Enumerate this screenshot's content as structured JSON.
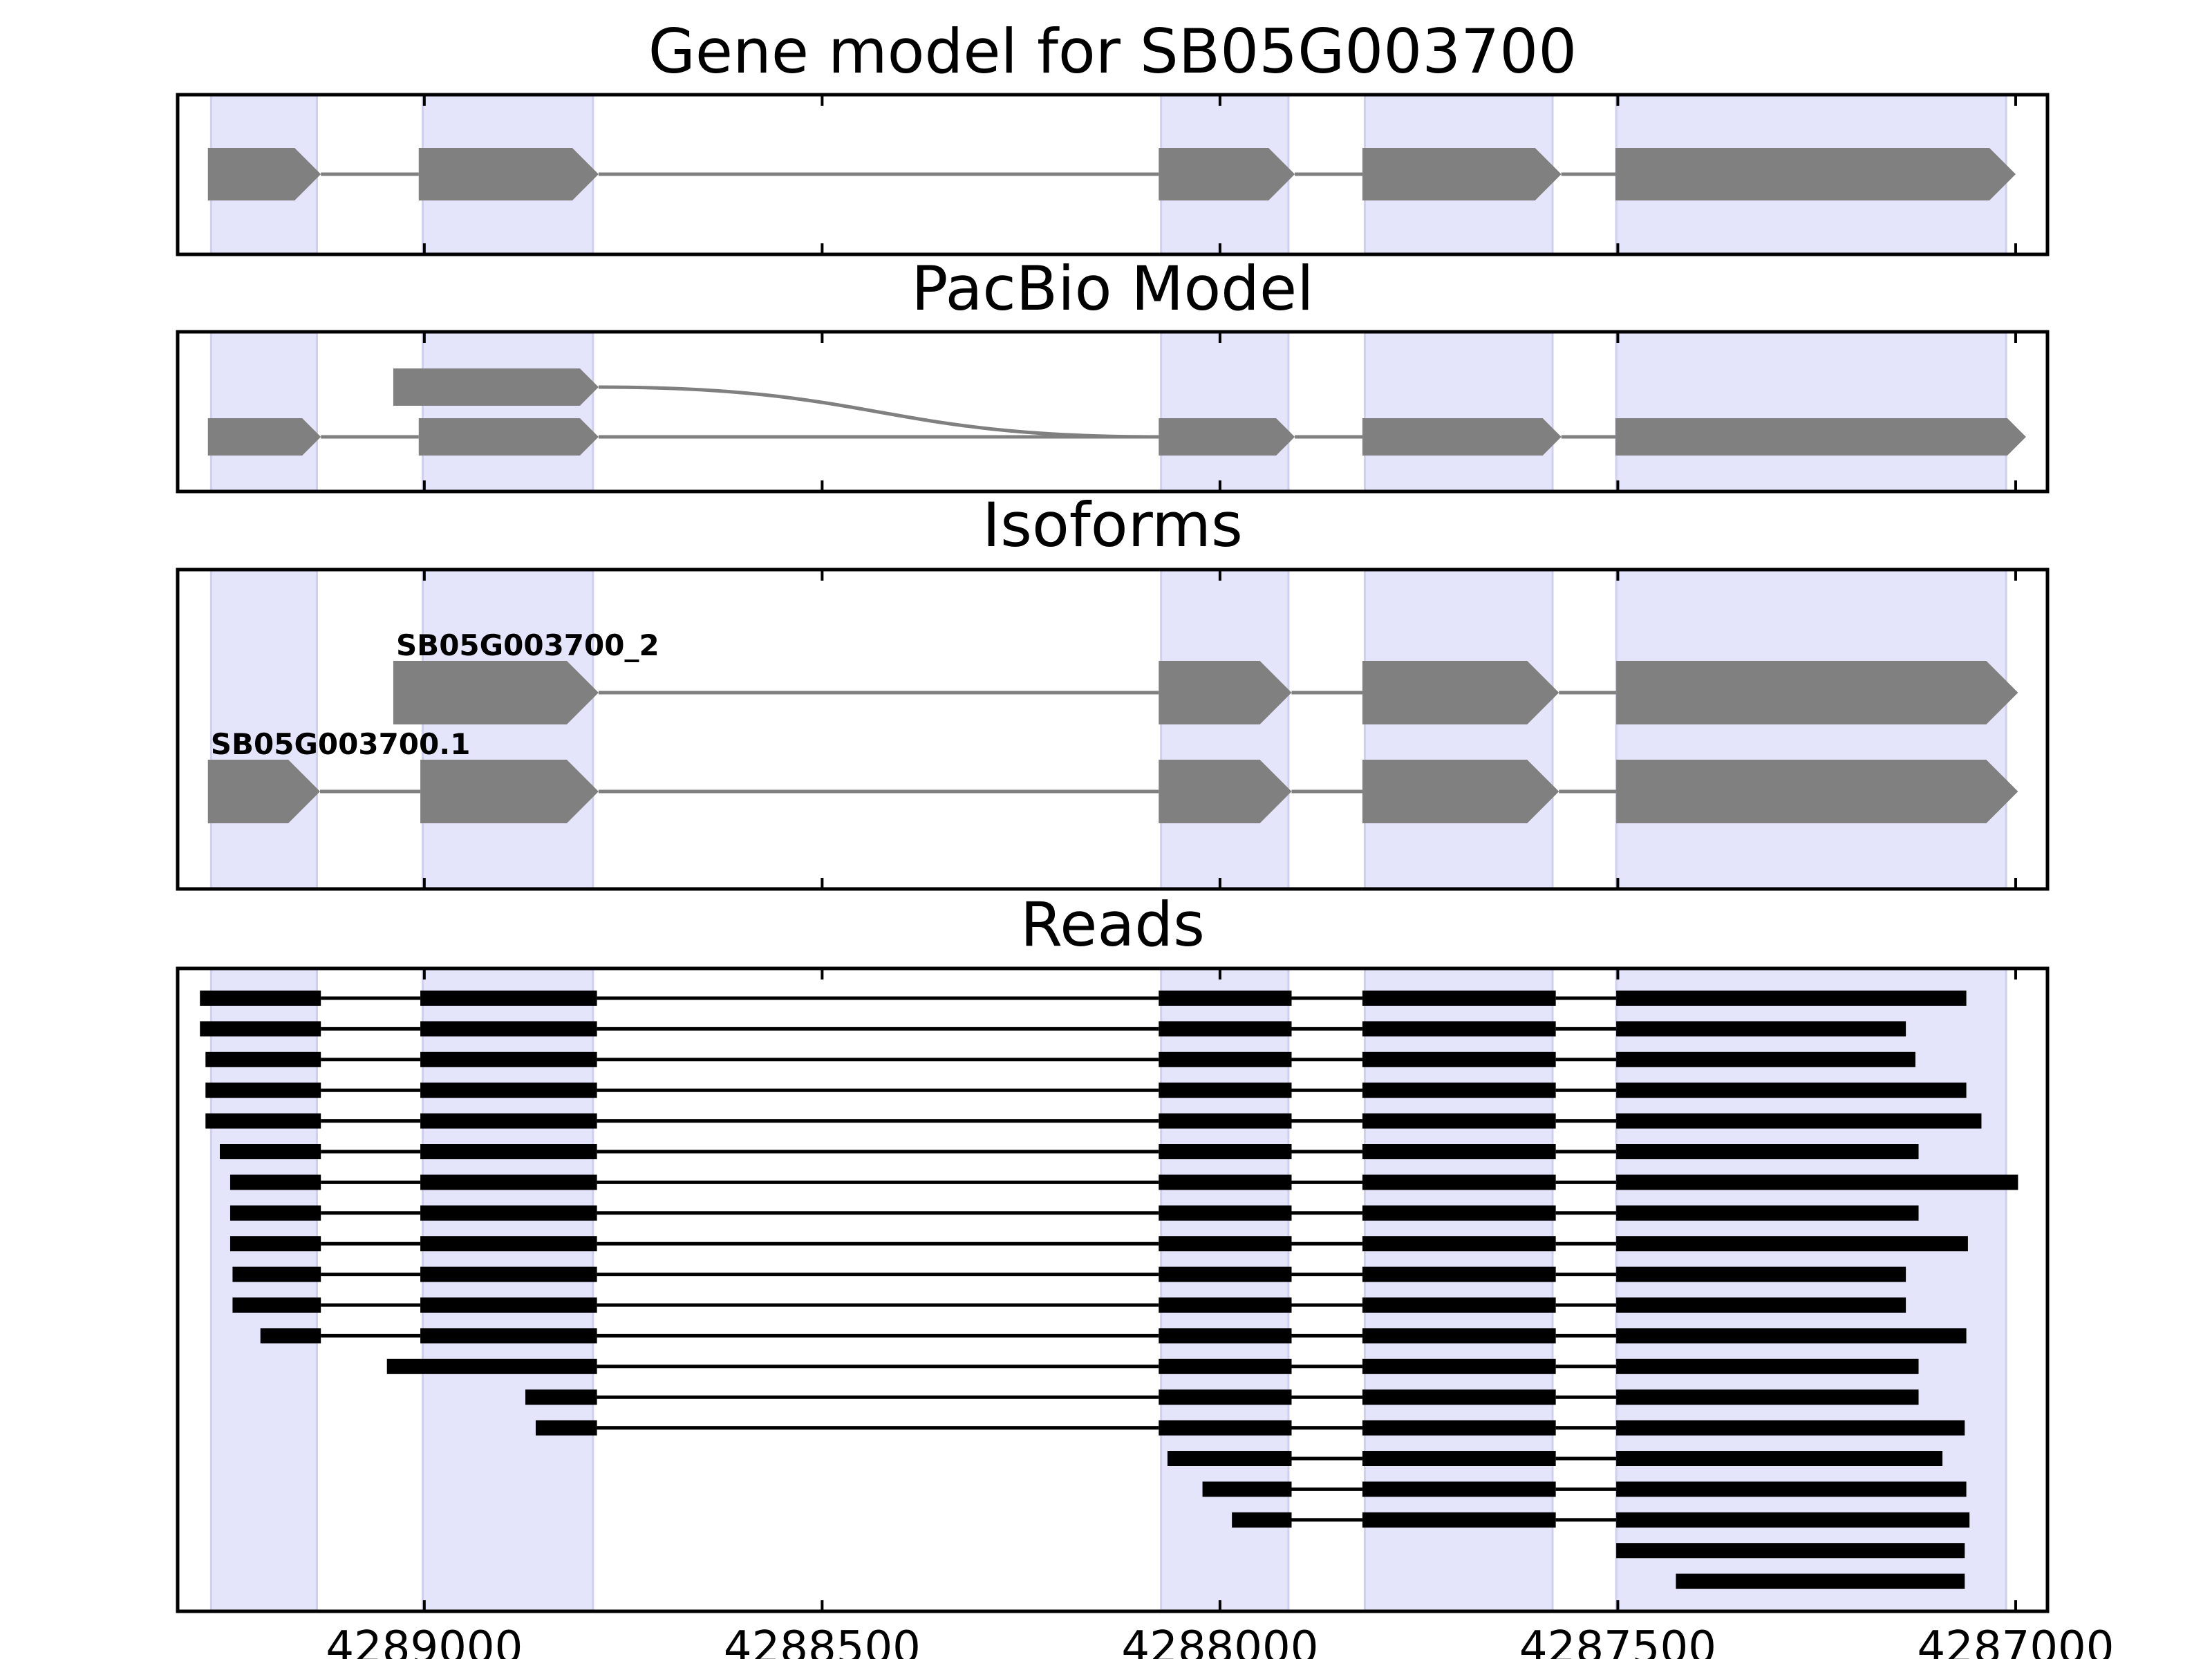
{
  "chart_data": {
    "type": "gene-structure",
    "x_axis": {
      "range": [
        4289310,
        4286960
      ],
      "inverted": true,
      "ticks": [
        4289000,
        4288500,
        4288000,
        4287500,
        4287000
      ],
      "tick_labels": [
        "4289000",
        "4288500",
        "4288000",
        "4287500",
        "4287000"
      ]
    },
    "highlight_regions": [
      [
        4289268,
        4289135
      ],
      [
        4289002,
        4288788
      ],
      [
        4288074,
        4287914
      ],
      [
        4287818,
        4287582
      ],
      [
        4287502,
        4287012
      ]
    ],
    "colors": {
      "highlight": "#e4e4fb",
      "highlight_edge": "#cfcfee",
      "feature": "#808080",
      "read": "#000000",
      "frame": "#000000"
    },
    "panels": [
      {
        "title": "Gene model for SB05G003700",
        "transcripts": [
          {
            "label": "",
            "row": 0,
            "exons": [
              [
                4289272,
                4289130
              ],
              [
                4289007,
                4288781
              ],
              [
                4288077,
                4287906
              ],
              [
                4287821,
                4287571
              ],
              [
                4287503,
                4287000
              ]
            ]
          }
        ]
      },
      {
        "title": "PacBio Model",
        "transcripts": [
          {
            "label": "",
            "row": 1,
            "exons": [
              [
                4289039,
                4288781
              ]
            ],
            "curve_to": 4288077
          },
          {
            "label": "",
            "row": 0,
            "exons": [
              [
                4289272,
                4289130
              ],
              [
                4289007,
                4288781
              ],
              [
                4288077,
                4287906
              ],
              [
                4287821,
                4287571
              ],
              [
                4287503,
                4286987
              ]
            ]
          }
        ]
      },
      {
        "title": "Isoforms",
        "transcripts": [
          {
            "label": "SB05G003700_2",
            "row": 1,
            "exons": [
              [
                4289039,
                4288781
              ],
              [
                4288077,
                4287910
              ],
              [
                4287821,
                4287574
              ],
              [
                4287502,
                4286997
              ]
            ]
          },
          {
            "label": "SB05G003700.1",
            "row": 0,
            "exons": [
              [
                4289272,
                4289131
              ],
              [
                4289005,
                4288781
              ],
              [
                4288077,
                4287910
              ],
              [
                4287821,
                4287574
              ],
              [
                4287502,
                4286997
              ]
            ]
          }
        ]
      },
      {
        "title": "Reads",
        "reads": [
          [
            [
              4289282,
              4289130
            ],
            [
              4289005,
              4288783
            ],
            [
              4288077,
              4287910
            ],
            [
              4287821,
              4287578
            ],
            [
              4287502,
              4287062
            ]
          ],
          [
            [
              4289282,
              4289130
            ],
            [
              4289005,
              4288783
            ],
            [
              4288077,
              4287910
            ],
            [
              4287821,
              4287578
            ],
            [
              4287502,
              4287138
            ]
          ],
          [
            [
              4289275,
              4289130
            ],
            [
              4289005,
              4288783
            ],
            [
              4288077,
              4287910
            ],
            [
              4287821,
              4287578
            ],
            [
              4287502,
              4287126
            ]
          ],
          [
            [
              4289275,
              4289130
            ],
            [
              4289005,
              4288783
            ],
            [
              4288077,
              4287910
            ],
            [
              4287821,
              4287578
            ],
            [
              4287502,
              4287062
            ]
          ],
          [
            [
              4289275,
              4289130
            ],
            [
              4289005,
              4288783
            ],
            [
              4288077,
              4287910
            ],
            [
              4287821,
              4287578
            ],
            [
              4287502,
              4287043
            ]
          ],
          [
            [
              4289257,
              4289130
            ],
            [
              4289005,
              4288783
            ],
            [
              4288077,
              4287910
            ],
            [
              4287821,
              4287578
            ],
            [
              4287502,
              4287122
            ]
          ],
          [
            [
              4289244,
              4289130
            ],
            [
              4289005,
              4288783
            ],
            [
              4288077,
              4287910
            ],
            [
              4287821,
              4287578
            ],
            [
              4287502,
              4286997
            ]
          ],
          [
            [
              4289244,
              4289130
            ],
            [
              4289005,
              4288783
            ],
            [
              4288077,
              4287910
            ],
            [
              4287821,
              4287578
            ],
            [
              4287502,
              4287122
            ]
          ],
          [
            [
              4289244,
              4289130
            ],
            [
              4289005,
              4288783
            ],
            [
              4288077,
              4287910
            ],
            [
              4287821,
              4287578
            ],
            [
              4287502,
              4287060
            ]
          ],
          [
            [
              4289241,
              4289130
            ],
            [
              4289005,
              4288783
            ],
            [
              4288077,
              4287910
            ],
            [
              4287821,
              4287578
            ],
            [
              4287502,
              4287138
            ]
          ],
          [
            [
              4289241,
              4289130
            ],
            [
              4289005,
              4288783
            ],
            [
              4288077,
              4287910
            ],
            [
              4287821,
              4287578
            ],
            [
              4287502,
              4287138
            ]
          ],
          [
            [
              4289206,
              4289130
            ],
            [
              4289005,
              4288783
            ],
            [
              4288077,
              4287910
            ],
            [
              4287821,
              4287578
            ],
            [
              4287502,
              4287062
            ]
          ],
          [
            [
              4289047,
              4288783
            ],
            [
              4288077,
              4287910
            ],
            [
              4287821,
              4287578
            ],
            [
              4287502,
              4287122
            ]
          ],
          [
            [
              4288873,
              4288783
            ],
            [
              4288077,
              4287910
            ],
            [
              4287821,
              4287578
            ],
            [
              4287502,
              4287122
            ]
          ],
          [
            [
              4288860,
              4288783
            ],
            [
              4288077,
              4287910
            ],
            [
              4287821,
              4287578
            ],
            [
              4287502,
              4287064
            ]
          ],
          [
            [
              4288066,
              4287910
            ],
            [
              4287821,
              4287578
            ],
            [
              4287502,
              4287092
            ]
          ],
          [
            [
              4288022,
              4287910
            ],
            [
              4287821,
              4287578
            ],
            [
              4287502,
              4287062
            ]
          ],
          [
            [
              4287985,
              4287910
            ],
            [
              4287821,
              4287578
            ],
            [
              4287502,
              4287058
            ]
          ],
          [
            [
              4287502,
              4287064
            ]
          ],
          [
            [
              4287427,
              4287064
            ]
          ]
        ]
      }
    ]
  }
}
